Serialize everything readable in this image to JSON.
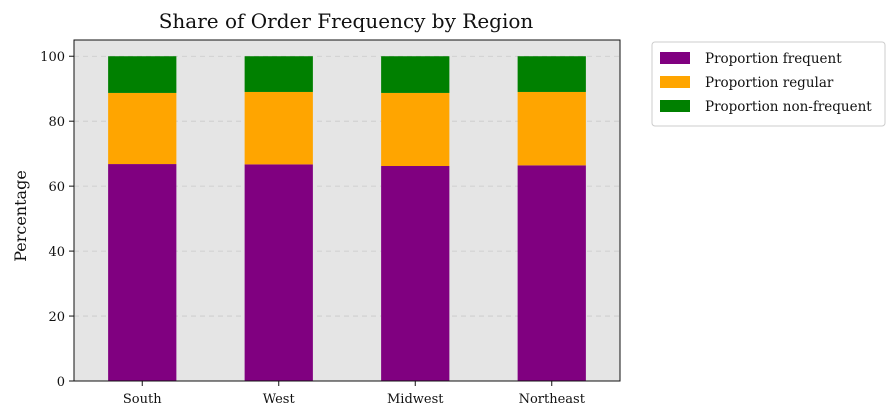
{
  "chart_data": {
    "type": "bar",
    "stacked": true,
    "title": "Share of Order Frequency by Region",
    "xlabel": "",
    "ylabel": "Percentage",
    "categories": [
      "South",
      "West",
      "Midwest",
      "Northeast"
    ],
    "series": [
      {
        "name": "Proportion frequent",
        "color": "#800080",
        "values": [
          66.8,
          66.7,
          66.2,
          66.4
        ]
      },
      {
        "name": "Proportion regular",
        "color": "#FFA500",
        "values": [
          21.9,
          22.3,
          22.5,
          22.6
        ]
      },
      {
        "name": "Proportion non-frequent",
        "color": "#008000",
        "values": [
          11.3,
          11.0,
          11.3,
          11.0
        ]
      }
    ],
    "ylim": [
      0,
      105
    ],
    "yticks": [
      0,
      20,
      40,
      60,
      80,
      100
    ],
    "grid": true,
    "legend_position": "outside-top-right",
    "plot_background": "#E5E5E5"
  }
}
